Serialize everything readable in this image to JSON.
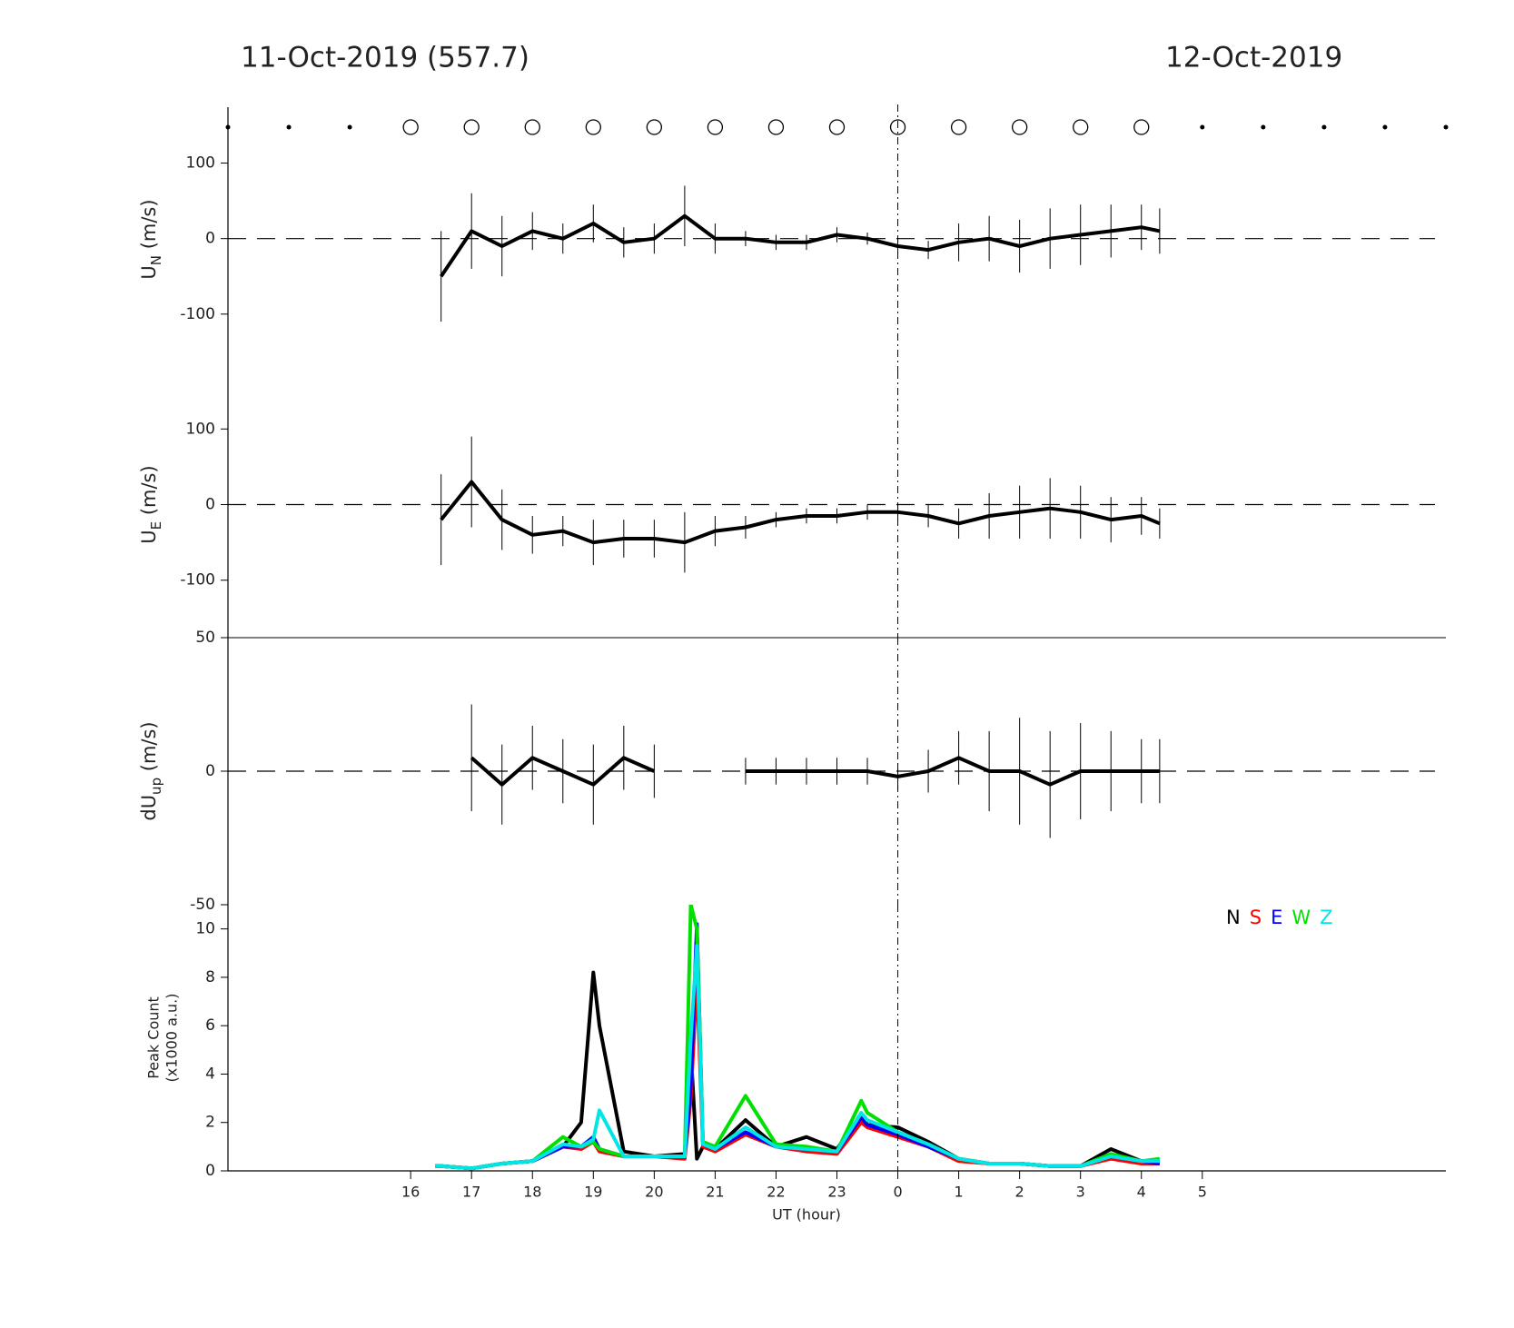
{
  "header": {
    "left_date": "11-Oct-2019 (557.7)",
    "right_date": "12-Oct-2019"
  },
  "markers": {
    "x": [
      13,
      14,
      15,
      16,
      17,
      18,
      19,
      20,
      21,
      22,
      23,
      24,
      25,
      26,
      27,
      28,
      29,
      30,
      31,
      32,
      33
    ],
    "symbol": [
      "dot",
      "dot",
      "dot",
      "circle",
      "circle",
      "circle",
      "circle",
      "circle",
      "circle",
      "circle",
      "circle",
      "circle",
      "circle",
      "circle",
      "circle",
      "circle",
      "dot",
      "dot",
      "dot",
      "dot",
      "dot"
    ]
  },
  "chart_data": [
    {
      "type": "errorline",
      "ylabel": {
        "main": "U",
        "sub": "N",
        "unit": " (m/s)"
      },
      "xlim": [
        13,
        33
      ],
      "ylim": [
        -176,
        174
      ],
      "yticks": [
        -100,
        0,
        100
      ],
      "zero_line": true,
      "marker_line_x": 24,
      "color": "#000000",
      "x": [
        16.5,
        17,
        17.5,
        18,
        18.5,
        19,
        19.5,
        20,
        20.5,
        21,
        21.5,
        22,
        22.5,
        23,
        23.5,
        24,
        24.5,
        25,
        25.5,
        26,
        26.5,
        27,
        27.5,
        28,
        28.3
      ],
      "values": [
        -50,
        10,
        -10,
        10,
        0,
        20,
        -5,
        0,
        30,
        0,
        0,
        -5,
        -5,
        5,
        0,
        -10,
        -15,
        -5,
        0,
        -10,
        0,
        5,
        10,
        15,
        10
      ],
      "errors": [
        60,
        50,
        40,
        25,
        20,
        25,
        20,
        20,
        40,
        20,
        10,
        10,
        10,
        10,
        8,
        10,
        12,
        25,
        30,
        35,
        40,
        40,
        35,
        30,
        30
      ]
    },
    {
      "type": "errorline",
      "ylabel": {
        "main": "U",
        "sub": "E",
        "unit": " (m/s)"
      },
      "xlim": [
        13,
        33
      ],
      "ylim": [
        -176,
        176
      ],
      "yticks": [
        -100,
        0,
        100
      ],
      "zero_line": true,
      "marker_line_x": 24,
      "color": "#000000",
      "x": [
        16.5,
        17,
        17.5,
        18,
        18.5,
        19,
        19.5,
        20,
        20.5,
        21,
        21.5,
        22,
        22.5,
        23,
        23.5,
        24,
        24.5,
        25,
        25.5,
        26,
        26.5,
        27,
        27.5,
        28,
        28.3
      ],
      "values": [
        -20,
        30,
        -20,
        -40,
        -35,
        -50,
        -45,
        -45,
        -50,
        -35,
        -30,
        -20,
        -15,
        -15,
        -10,
        -10,
        -15,
        -25,
        -15,
        -10,
        -5,
        -10,
        -20,
        -15,
        -25
      ],
      "errors": [
        60,
        60,
        40,
        25,
        20,
        30,
        25,
        25,
        40,
        20,
        15,
        10,
        10,
        10,
        10,
        10,
        15,
        20,
        30,
        35,
        40,
        35,
        30,
        25,
        20
      ]
    },
    {
      "type": "errorline",
      "ylabel": {
        "main": "dU",
        "sub": "up",
        "unit": " (m/s)"
      },
      "xlim": [
        13,
        33
      ],
      "ylim": [
        -50,
        50
      ],
      "yticks": [
        -50,
        0,
        50
      ],
      "zero_line": true,
      "marker_line_x": 24,
      "color": "#000000",
      "x": [
        16.5,
        17,
        17.5,
        18,
        18.5,
        19,
        19.5,
        20,
        20.5,
        21,
        21.5,
        22,
        22.5,
        23,
        23.5,
        24,
        24.5,
        25,
        25.5,
        26,
        26.5,
        27,
        27.5,
        28,
        28.3
      ],
      "values": [
        null,
        5,
        -5,
        5,
        0,
        -5,
        5,
        0,
        null,
        null,
        0,
        0,
        0,
        0,
        0,
        -2,
        0,
        5,
        0,
        0,
        -5,
        0,
        0,
        0,
        0
      ],
      "errors": [
        null,
        20,
        15,
        12,
        12,
        15,
        12,
        10,
        null,
        null,
        5,
        5,
        5,
        5,
        5,
        5,
        8,
        10,
        15,
        20,
        20,
        18,
        15,
        12,
        12
      ]
    },
    {
      "type": "line",
      "ylabel": [
        "Peak Count",
        "(x1000 a.u.)"
      ],
      "xlabel": "UT (hour)",
      "xlim": [
        13,
        33
      ],
      "ylim": [
        0,
        11
      ],
      "yticks": [
        0,
        2,
        4,
        6,
        8,
        10
      ],
      "marker_line_x": 24,
      "xticks": [
        16,
        17,
        18,
        19,
        20,
        21,
        22,
        23,
        {
          "value": 24,
          "label": "0"
        },
        {
          "value": 25,
          "label": "1"
        },
        {
          "value": 26,
          "label": "2"
        },
        {
          "value": 27,
          "label": "3"
        },
        {
          "value": 28,
          "label": "4"
        },
        {
          "value": 29,
          "label": "5"
        }
      ],
      "x": [
        16.4,
        16.5,
        17,
        17.5,
        18,
        18.5,
        18.8,
        19,
        19.1,
        19.5,
        20,
        20.5,
        20.6,
        20.7,
        20.8,
        21,
        21.5,
        22,
        22.5,
        23,
        23.4,
        23.5,
        24,
        24.5,
        25,
        25.5,
        26,
        26.5,
        27,
        27.5,
        28,
        28.3
      ],
      "series": [
        {
          "name": "N",
          "color": "#000000",
          "values": [
            0.2,
            0.2,
            0.1,
            0.3,
            0.4,
            1.0,
            2.0,
            8.2,
            6.0,
            0.8,
            0.6,
            0.7,
            5.0,
            0.5,
            1.0,
            0.9,
            2.1,
            1.0,
            1.4,
            0.9,
            2.3,
            1.9,
            1.8,
            1.2,
            0.5,
            0.3,
            0.3,
            0.2,
            0.2,
            0.9,
            0.4,
            0.4
          ]
        },
        {
          "name": "S",
          "color": "#ff0000",
          "values": [
            0.2,
            0.2,
            0.1,
            0.3,
            0.4,
            1.0,
            0.9,
            1.2,
            0.8,
            0.6,
            0.6,
            0.5,
            3.0,
            8.0,
            1.0,
            0.8,
            1.5,
            1.0,
            0.8,
            0.7,
            2.0,
            1.8,
            1.4,
            1.0,
            0.4,
            0.3,
            0.3,
            0.2,
            0.2,
            0.5,
            0.3,
            0.3
          ]
        },
        {
          "name": "E",
          "color": "#0000ff",
          "values": [
            0.2,
            0.2,
            0.1,
            0.3,
            0.4,
            1.0,
            1.0,
            1.4,
            0.9,
            0.6,
            0.6,
            0.6,
            3.5,
            10.2,
            1.1,
            0.9,
            1.6,
            1.0,
            0.9,
            0.8,
            2.2,
            1.9,
            1.5,
            1.0,
            0.5,
            0.3,
            0.3,
            0.2,
            0.2,
            0.6,
            0.4,
            0.3
          ]
        },
        {
          "name": "W",
          "color": "#00e000",
          "values": [
            0.2,
            0.2,
            0.1,
            0.3,
            0.4,
            1.4,
            1.0,
            1.2,
            0.9,
            0.6,
            0.6,
            0.6,
            11.0,
            10.0,
            1.2,
            1.0,
            3.1,
            1.1,
            1.0,
            0.8,
            2.9,
            2.4,
            1.6,
            1.1,
            0.5,
            0.3,
            0.3,
            0.2,
            0.2,
            0.7,
            0.4,
            0.5
          ]
        },
        {
          "name": "Z",
          "color": "#00e5e5",
          "values": [
            0.2,
            0.2,
            0.1,
            0.3,
            0.4,
            1.1,
            1.0,
            1.3,
            2.5,
            0.6,
            0.6,
            0.6,
            5.5,
            9.3,
            1.1,
            0.9,
            1.8,
            1.0,
            0.9,
            0.8,
            2.4,
            2.1,
            1.6,
            1.1,
            0.5,
            0.3,
            0.3,
            0.2,
            0.2,
            0.6,
            0.4,
            0.4
          ]
        }
      ]
    }
  ]
}
